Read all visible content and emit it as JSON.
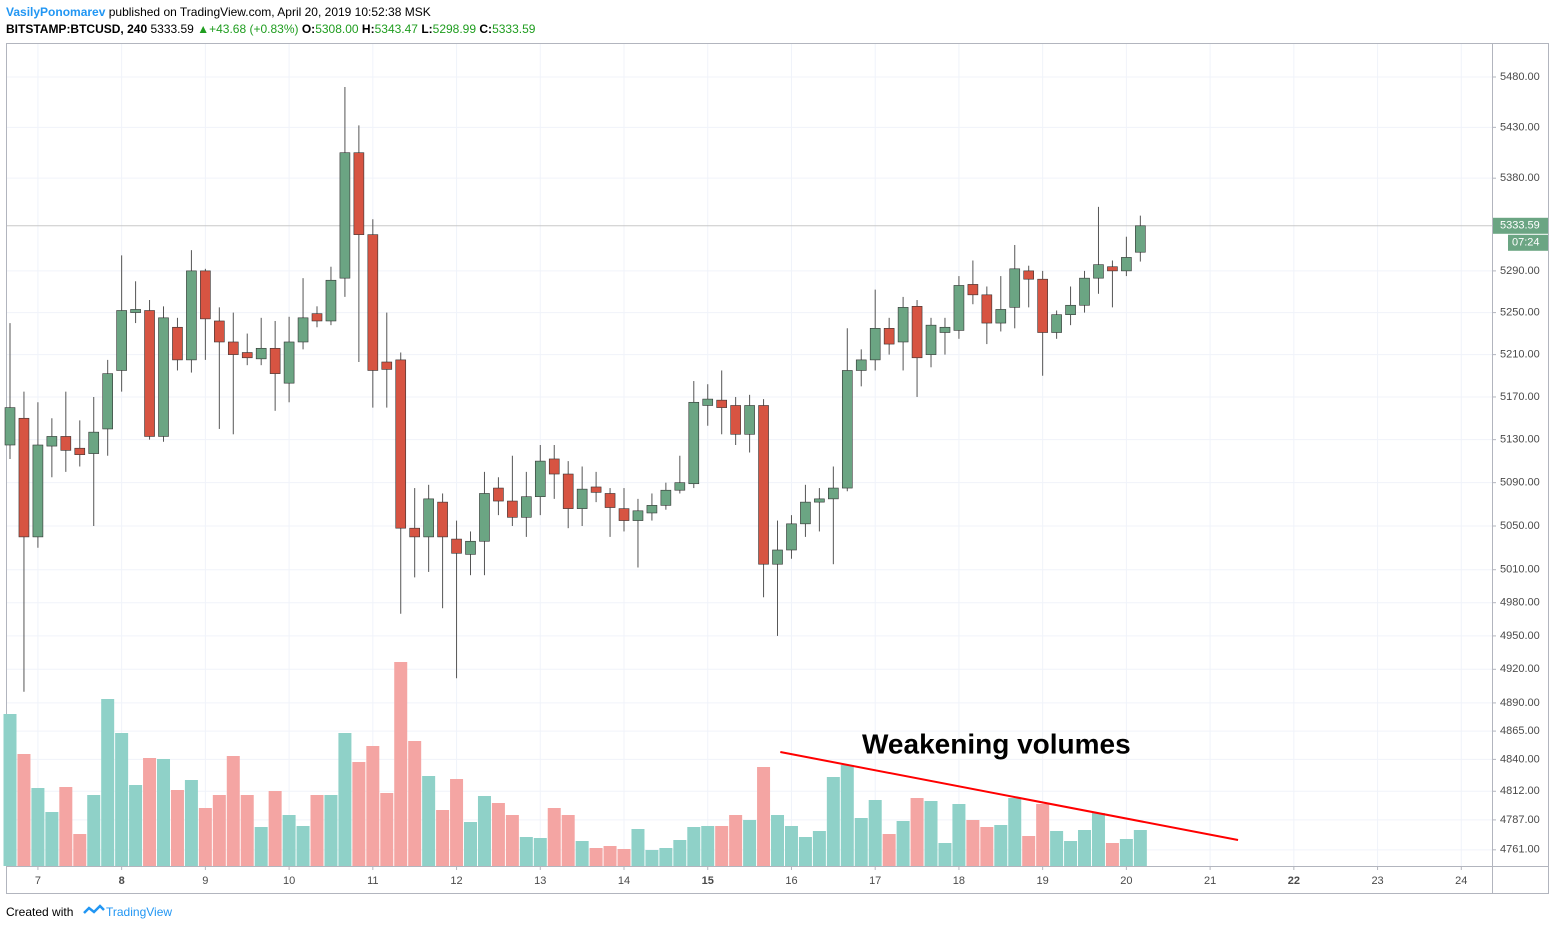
{
  "chart_data": {
    "type": "candlestick",
    "header": {
      "author": "VasilyPonomarev",
      "published": "published on TradingView.com, April 20, 2019 10:52:38 MSK",
      "symbol": "BITSTAMP:BTCUSD, 240",
      "price": "5333.59",
      "arrow": "▲",
      "change": "+43.68 (+0.83%)",
      "o_label": "O:",
      "open": "5308.00",
      "h_label": "H:",
      "high": "5343.47",
      "l_label": "L:",
      "low": "5298.99",
      "c_label": "C:",
      "close": "5333.59"
    },
    "annotation": "Weakening volumes",
    "last_price_label": "5333.59",
    "countdown": "07:24",
    "footer": {
      "created": "Created with",
      "brand": "TradingView"
    },
    "up_color": "#6ba583",
    "down_color": "#d75442",
    "volume_up_color": "#8fd1c8",
    "volume_down_color": "#f4a5a3",
    "trend_color": "#ff0000",
    "ylog": true,
    "grid": true,
    "ylim": [
      4747,
      5513
    ],
    "yticks": [
      {
        "value": 5480,
        "label": "5480.00"
      },
      {
        "value": 5430,
        "label": "5430.00"
      },
      {
        "value": 5380,
        "label": "5380.00"
      },
      {
        "value": 5290,
        "label": "5290.00"
      },
      {
        "value": 5250,
        "label": "5250.00"
      },
      {
        "value": 5210,
        "label": "5210.00"
      },
      {
        "value": 5170,
        "label": "5170.00"
      },
      {
        "value": 5130,
        "label": "5130.00"
      },
      {
        "value": 5090,
        "label": "5090.00"
      },
      {
        "value": 5050,
        "label": "5050.00"
      },
      {
        "value": 5010,
        "label": "5010.00"
      },
      {
        "value": 4980,
        "label": "4980.00"
      },
      {
        "value": 4950,
        "label": "4950.00"
      },
      {
        "value": 4920,
        "label": "4920.00"
      },
      {
        "value": 4890,
        "label": "4890.00"
      },
      {
        "value": 4865,
        "label": "4865.00"
      },
      {
        "value": 4840,
        "label": "4840.00"
      },
      {
        "value": 4812,
        "label": "4812.00"
      },
      {
        "value": 4787,
        "label": "4787.00"
      },
      {
        "value": 4761,
        "label": "4761.00"
      }
    ],
    "xlim": [
      -0.215,
      106.2
    ],
    "xticks": [
      {
        "value": 2,
        "label": "7"
      },
      {
        "value": 8,
        "label": "8",
        "bold": true
      },
      {
        "value": 14,
        "label": "9"
      },
      {
        "value": 20,
        "label": "10"
      },
      {
        "value": 26,
        "label": "11"
      },
      {
        "value": 32,
        "label": "12"
      },
      {
        "value": 38,
        "label": "13"
      },
      {
        "value": 44,
        "label": "14"
      },
      {
        "value": 50,
        "label": "15",
        "bold": true
      },
      {
        "value": 56,
        "label": "16"
      },
      {
        "value": 62,
        "label": "17"
      },
      {
        "value": 68,
        "label": "18"
      },
      {
        "value": 74,
        "label": "19"
      },
      {
        "value": 80,
        "label": "20"
      },
      {
        "value": 86,
        "label": "21"
      },
      {
        "value": 92,
        "label": "22",
        "bold": true
      },
      {
        "value": 98,
        "label": "23"
      },
      {
        "value": 104,
        "label": "24"
      }
    ],
    "trend_line": {
      "x": [
        55.2,
        88
      ],
      "volume": [
        114,
        26
      ]
    },
    "y2lim": [
      0,
      822
    ],
    "candles": {
      "open": [
        5125,
        5150,
        5040,
        5124,
        5133,
        5122,
        5117,
        5140,
        5195,
        5250,
        5252,
        5133,
        5236,
        5205,
        5290,
        5242,
        5222,
        5212,
        5206,
        5216,
        5183,
        5222,
        5249,
        5242,
        5283,
        5405,
        5325,
        5203,
        5205,
        5048,
        5040,
        5072,
        5038,
        5024,
        5036,
        5085,
        5073,
        5058,
        5077,
        5112,
        5098,
        5066,
        5086,
        5080,
        5066,
        5055,
        5062,
        5069,
        5083,
        5089,
        5162,
        5167,
        5162,
        5135,
        5162,
        5015,
        5028,
        5052,
        5072,
        5075,
        5085,
        5195,
        5205,
        5235,
        5222,
        5256,
        5210,
        5231,
        5233,
        5277,
        5267,
        5240,
        5255,
        5290,
        5282,
        5231,
        5248,
        5257,
        5283,
        5294,
        5290,
        5308
      ],
      "high": [
        5240,
        5175,
        5165,
        5150,
        5175,
        5148,
        5170,
        5205,
        5305,
        5280,
        5262,
        5256,
        5245,
        5310,
        5292,
        5255,
        5250,
        5230,
        5245,
        5242,
        5246,
        5283,
        5256,
        5294,
        5470,
        5432,
        5340,
        5250,
        5212,
        5085,
        5088,
        5080,
        5055,
        5045,
        5100,
        5095,
        5115,
        5100,
        5125,
        5125,
        5110,
        5105,
        5100,
        5085,
        5085,
        5075,
        5080,
        5090,
        5115,
        5185,
        5182,
        5195,
        5170,
        5172,
        5168,
        5055,
        5060,
        5088,
        5085,
        5105,
        5235,
        5215,
        5272,
        5245,
        5265,
        5262,
        5245,
        5245,
        5285,
        5300,
        5275,
        5285,
        5315,
        5295,
        5290,
        5252,
        5275,
        5290,
        5352,
        5300,
        5323,
        5343.47
      ],
      "low": [
        5112,
        4900,
        5030,
        5095,
        5100,
        5105,
        5050,
        5115,
        5175,
        5240,
        5130,
        5128,
        5195,
        5193,
        5205,
        5140,
        5135,
        5200,
        5200,
        5157,
        5165,
        5215,
        5236,
        5238,
        5265,
        5203,
        5160,
        5160,
        4970,
        5003,
        5008,
        4975,
        4912,
        5005,
        5005,
        5060,
        5050,
        5040,
        5060,
        5075,
        5048,
        5050,
        5072,
        5040,
        5045,
        5012,
        5055,
        5065,
        5080,
        5085,
        5143,
        5135,
        5125,
        5118,
        4985,
        4950,
        5020,
        5040,
        5045,
        5015,
        5082,
        5180,
        5195,
        5210,
        5195,
        5170,
        5198,
        5210,
        5225,
        5258,
        5220,
        5232,
        5235,
        5255,
        5190,
        5225,
        5238,
        5250,
        5268,
        5255,
        5285,
        5298.99
      ],
      "close": [
        5160,
        5040,
        5125,
        5133,
        5120,
        5116,
        5137,
        5192,
        5252,
        5253,
        5133,
        5245,
        5205,
        5290,
        5244,
        5222,
        5210,
        5207,
        5216,
        5192,
        5222,
        5245,
        5242,
        5281,
        5405,
        5325,
        5195,
        5196,
        5048,
        5040,
        5075,
        5040,
        5025,
        5036,
        5080,
        5073,
        5058,
        5077,
        5110,
        5098,
        5066,
        5084,
        5081,
        5067,
        5055,
        5064,
        5069,
        5083,
        5090,
        5165,
        5168,
        5160,
        5135,
        5162,
        5015,
        5028,
        5052,
        5072,
        5075,
        5085,
        5195,
        5205,
        5235,
        5220,
        5255,
        5207,
        5238,
        5236,
        5276,
        5267,
        5240,
        5253,
        5292,
        5282,
        5231,
        5248,
        5257,
        5283,
        5296,
        5290,
        5303,
        5333.59
      ]
    },
    "volume": [
      152,
      112,
      78,
      54,
      79,
      32,
      71,
      167,
      133,
      81,
      108,
      107,
      76,
      86,
      58,
      71,
      110,
      71,
      39,
      75,
      51,
      40,
      71,
      71,
      133,
      104,
      120,
      73,
      204,
      125,
      90,
      56,
      87,
      44,
      70,
      63,
      51,
      29,
      28,
      58,
      51,
      25,
      18,
      20,
      17,
      37,
      16,
      18,
      26,
      39,
      40,
      40,
      51,
      46,
      99,
      51,
      40,
      29,
      35,
      89,
      101,
      48,
      66,
      32,
      45,
      68,
      65,
      23,
      62,
      46,
      39,
      41,
      68,
      30,
      62,
      35,
      25,
      36,
      53,
      23,
      27,
      36
    ]
  }
}
